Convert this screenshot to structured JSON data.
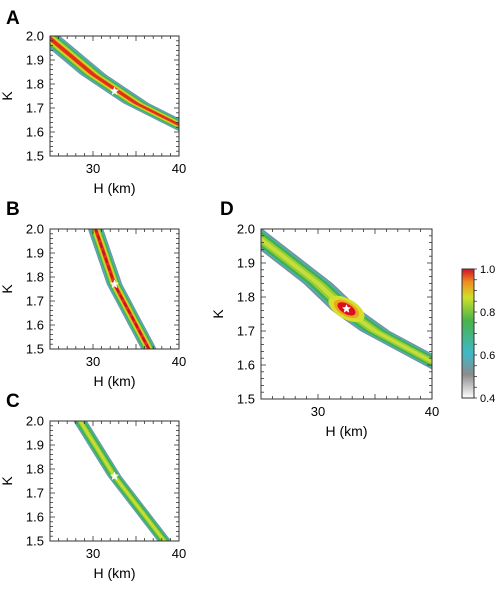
{
  "chart_data": [
    {
      "type": "heatmap",
      "panel": "A",
      "xlabel": "H (km)",
      "ylabel": "K",
      "xlim": [
        25,
        40
      ],
      "ylim": [
        1.5,
        2.0
      ],
      "xticks": [
        30,
        40
      ],
      "yticks": [
        1.5,
        1.6,
        1.7,
        1.8,
        1.9,
        2.0
      ],
      "ridge_x": [
        25,
        30,
        35,
        40
      ],
      "ridge_y": [
        1.99,
        1.84,
        1.72,
        1.63
      ],
      "band_half_width_km": 1.5,
      "peak_value": 1.0,
      "best_fit": {
        "H": 32.5,
        "K": 1.77
      }
    },
    {
      "type": "heatmap",
      "panel": "B",
      "xlabel": "H (km)",
      "ylabel": "K",
      "xlim": [
        25,
        40
      ],
      "ylim": [
        1.5,
        2.0
      ],
      "xticks": [
        30,
        40
      ],
      "yticks": [
        1.5,
        1.6,
        1.7,
        1.8,
        1.9,
        2.0
      ],
      "ridge_x": [
        30.3,
        32.5,
        36.5
      ],
      "ridge_y": [
        2.0,
        1.77,
        1.5
      ],
      "band_half_width_km": 0.9,
      "peak_value": 0.95,
      "best_fit": {
        "H": 32.5,
        "K": 1.77
      }
    },
    {
      "type": "heatmap",
      "panel": "C",
      "xlabel": "H (km)",
      "ylabel": "K",
      "xlim": [
        25,
        40
      ],
      "ylim": [
        1.5,
        2.0
      ],
      "xticks": [
        30,
        40
      ],
      "yticks": [
        1.5,
        1.6,
        1.7,
        1.8,
        1.9,
        2.0
      ],
      "ridge_x": [
        28.5,
        32.5,
        38.3
      ],
      "ridge_y": [
        2.0,
        1.77,
        1.5
      ],
      "band_half_width_km": 0.8,
      "peak_value": 0.82,
      "best_fit": {
        "H": 32.5,
        "K": 1.77
      }
    },
    {
      "type": "heatmap",
      "panel": "D",
      "xlabel": "H (km)",
      "ylabel": "K",
      "xlim": [
        25,
        40
      ],
      "ylim": [
        1.5,
        2.0
      ],
      "xticks": [
        30,
        40
      ],
      "yticks": [
        1.5,
        1.6,
        1.7,
        1.8,
        1.9,
        2.0
      ],
      "ridge_x": [
        25,
        30,
        32.5,
        35,
        40
      ],
      "ridge_y": [
        1.97,
        1.84,
        1.76,
        1.7,
        1.61
      ],
      "band_half_width_km": 1.3,
      "peak_value": 1.0,
      "best_fit": {
        "H": 32.5,
        "K": 1.765
      },
      "colorbar": {
        "min": 0.4,
        "max": 1.0,
        "ticks": [
          0.4,
          0.6,
          0.8,
          1.0
        ],
        "tick_labels": [
          "0.4",
          "0.6",
          "0.8",
          "1.0"
        ]
      }
    }
  ],
  "colormap": [
    "#ffffff",
    "#8a8a8a",
    "#3fb8c8",
    "#49b34a",
    "#cfe02a",
    "#e02515",
    "#c8102e"
  ]
}
